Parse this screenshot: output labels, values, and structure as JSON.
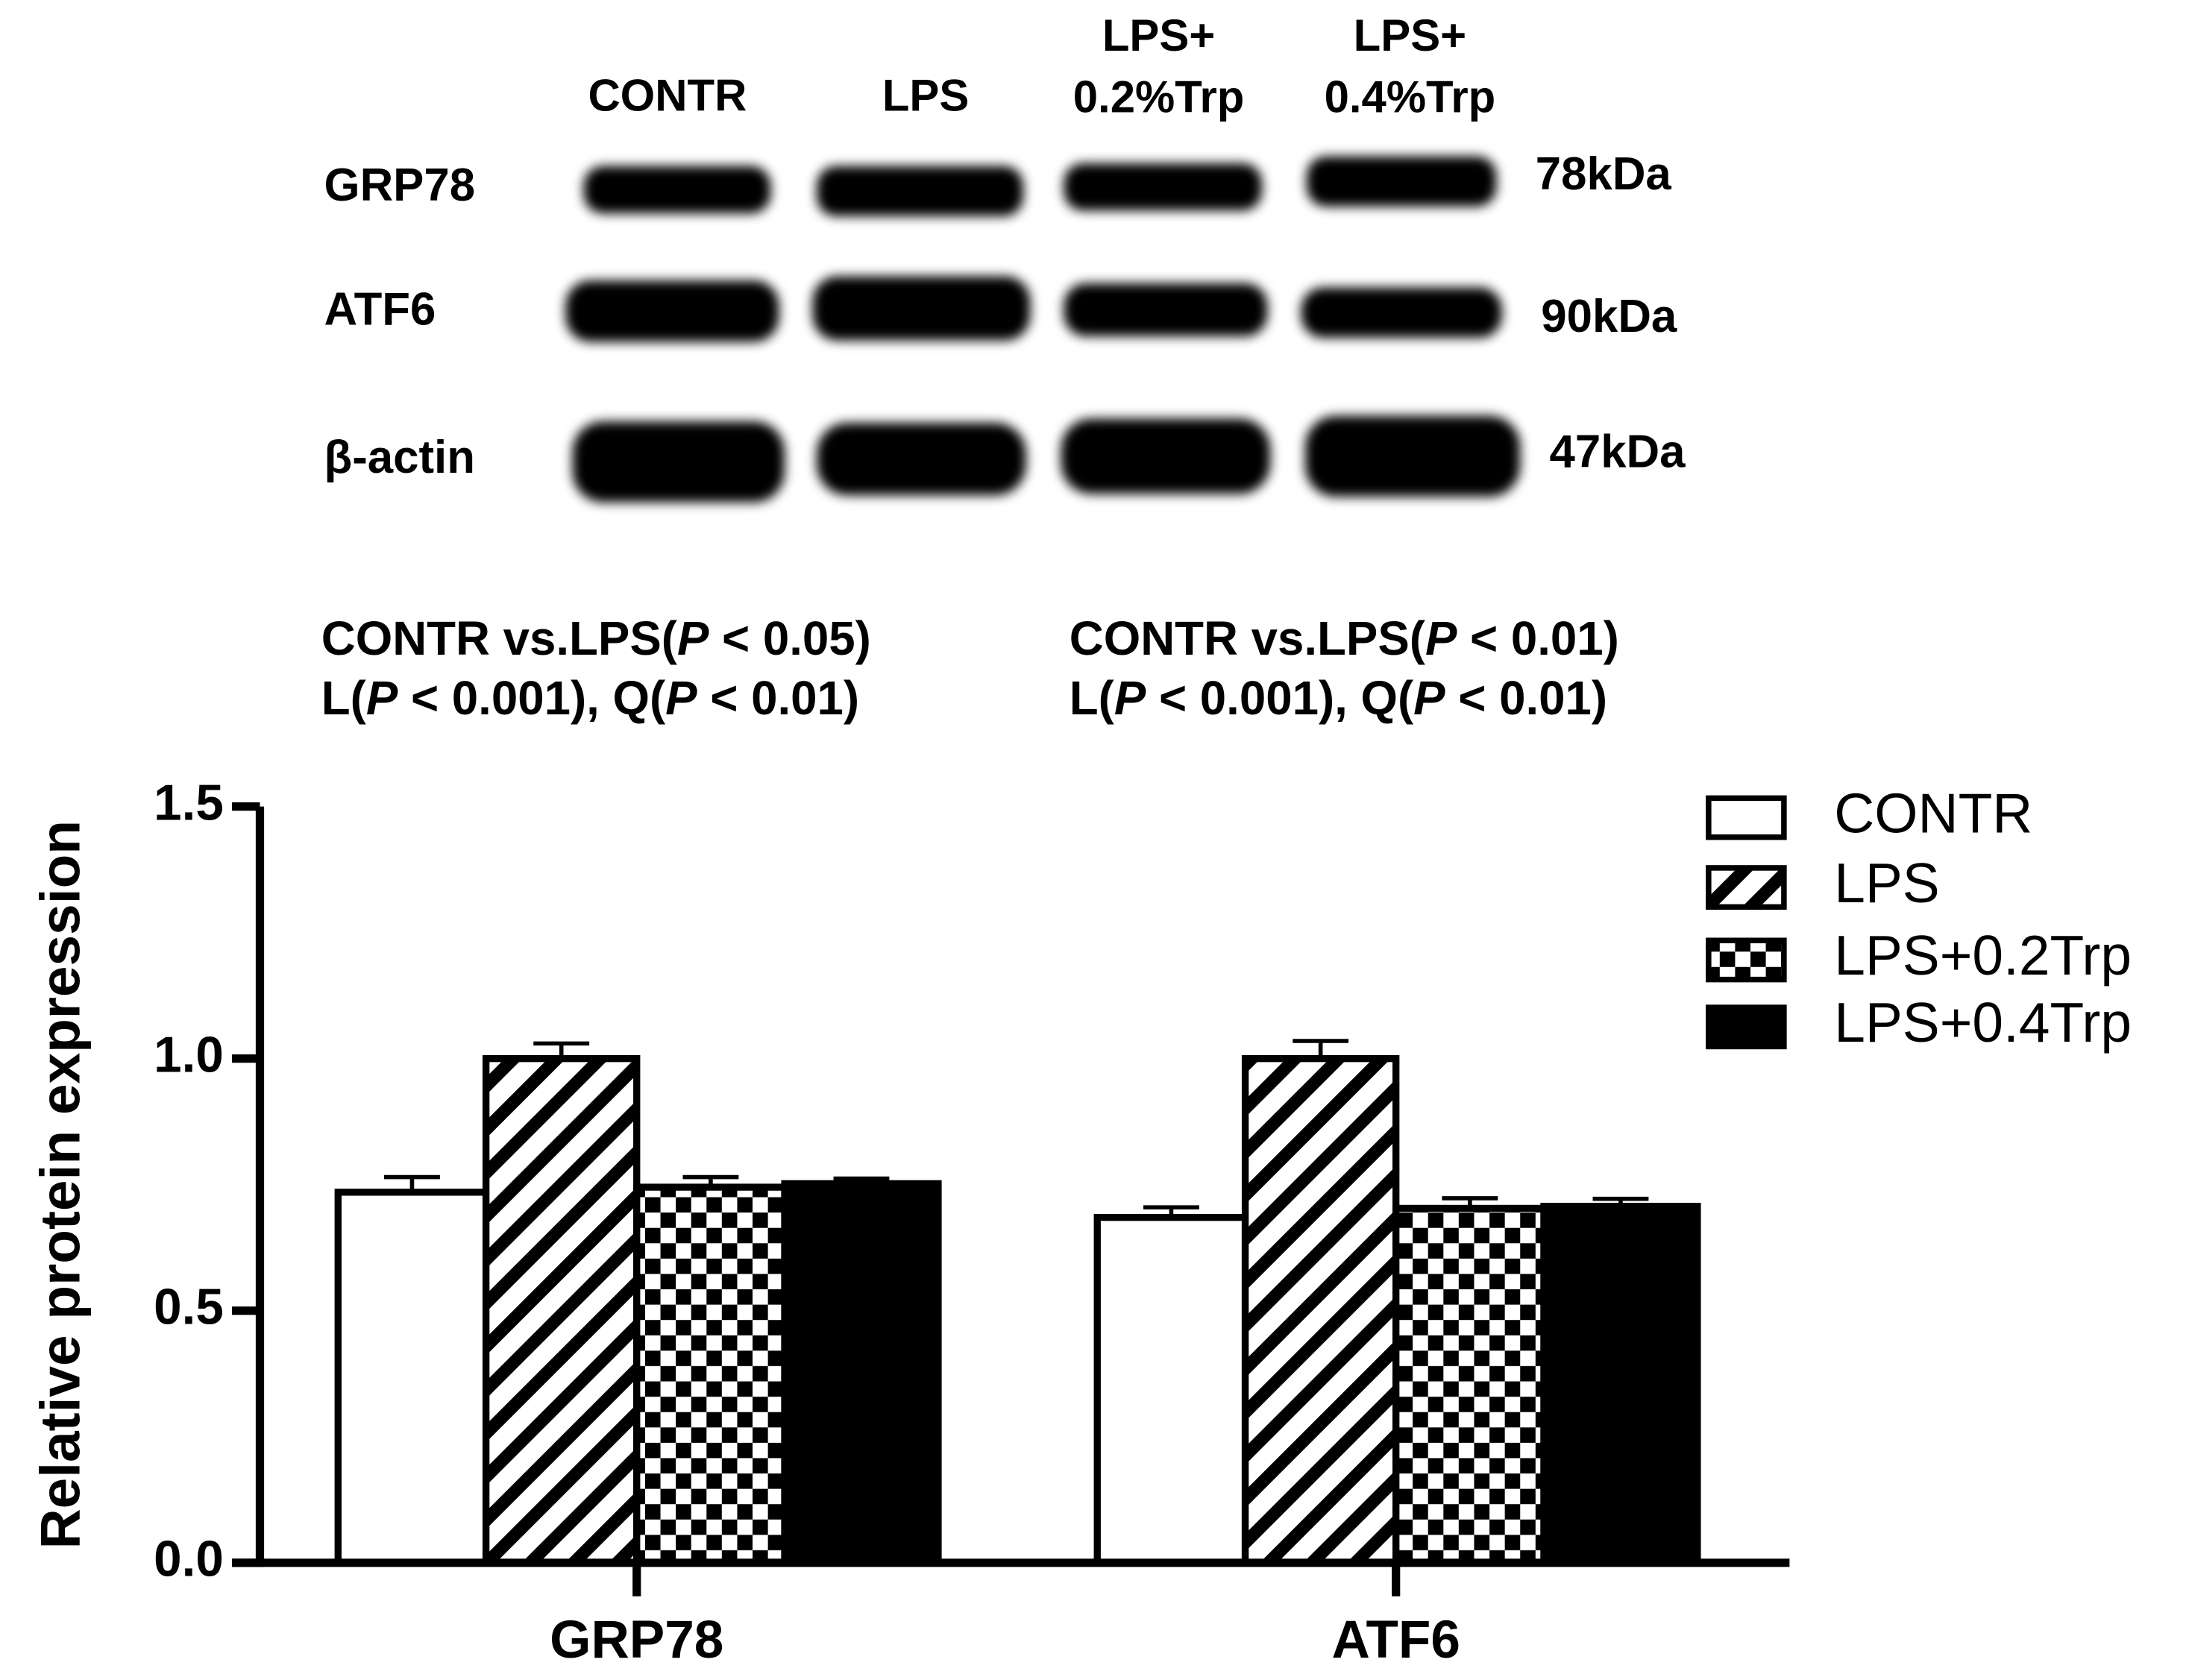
{
  "blot": {
    "lanes": [
      [
        "CONTR"
      ],
      [
        "LPS"
      ],
      [
        "LPS+",
        "0.2%Trp"
      ],
      [
        "LPS+",
        "0.4%Trp"
      ]
    ],
    "proteins": [
      "GRP78",
      "ATF6",
      "β-actin"
    ],
    "sizes": [
      "78kDa",
      "90kDa",
      "47kDa"
    ]
  },
  "chart_data": {
    "type": "bar",
    "annotations": [
      [
        [
          "CONTR vs.LPS(",
          "P",
          " < 0.05)"
        ],
        [
          "L(",
          "P",
          " < 0.001), Q(",
          "P",
          " < 0.01)"
        ]
      ],
      [
        [
          "CONTR vs.LPS(",
          "P",
          " < 0.01)"
        ],
        [
          "L(",
          "P",
          " < 0.001), Q(",
          "P",
          " < 0.01)"
        ]
      ]
    ],
    "ylabel": "Relative protein expression",
    "categories": [
      "GRP78",
      "ATF6"
    ],
    "series": [
      {
        "name": "CONTR",
        "color": "#ffffff",
        "pattern": "solid",
        "values": [
          0.735,
          0.685
        ],
        "errors": [
          0.03,
          0.02
        ]
      },
      {
        "name": "LPS",
        "color": "#000000",
        "pattern": "hatch",
        "values": [
          1.0,
          1.0
        ],
        "errors": [
          0.03,
          0.035
        ]
      },
      {
        "name": "LPS+0.2Trp",
        "color": "#000000",
        "pattern": "checker",
        "values": [
          0.745,
          0.703
        ],
        "errors": [
          0.02,
          0.02
        ]
      },
      {
        "name": "LPS+0.4Trp",
        "color": "#000000",
        "pattern": "solid",
        "values": [
          0.752,
          0.707
        ],
        "errors": [
          0.01,
          0.015
        ]
      }
    ],
    "ylim": [
      0,
      1.5
    ],
    "yticks": [
      {
        "value": 0,
        "label": "0.0"
      },
      {
        "value": 0.5,
        "label": "0.5"
      },
      {
        "value": 1,
        "label": "1.0"
      },
      {
        "value": 1.5,
        "label": "1.5"
      }
    ],
    "legend": "upper right"
  }
}
